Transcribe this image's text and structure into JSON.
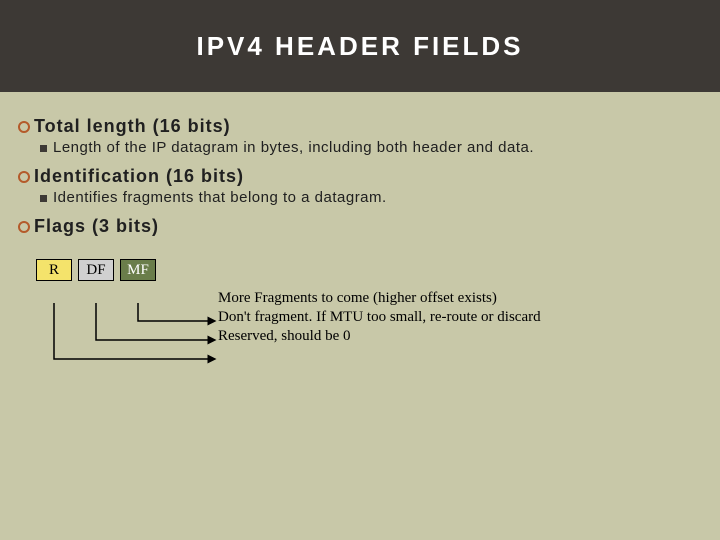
{
  "colors": {
    "header_bg": "#3d3935",
    "header_text": "#ffffff",
    "content_bg": "#c8c8a8",
    "circle_border": "#b45a2a",
    "square_fill": "#3d3935",
    "text": "#202020",
    "flag_r_bg": "#f4e36b",
    "flag_df_bg": "#d0d0d0",
    "flag_mf_bg": "#6a7d4a",
    "flag_border": "#000000",
    "arrow": "#000000"
  },
  "header": {
    "title": "IPV4 HEADER FIELDS",
    "fontsize": 26
  },
  "fields": [
    {
      "title": "Total length (16 bits)",
      "title_fontsize": 18,
      "sub": "Length of the IP datagram in bytes, including both header and data.",
      "sub_fontsize": 15
    },
    {
      "title": "Identification (16 bits)",
      "title_fontsize": 18,
      "sub": "Identifies fragments that belong to a datagram.",
      "sub_fontsize": 15
    },
    {
      "title": "Flags (3 bits)",
      "title_fontsize": 18,
      "sub": null
    }
  ],
  "flags": {
    "boxes": [
      "R",
      "DF",
      "MF"
    ],
    "box_fontsize": 15,
    "descriptions": [
      "More Fragments to come (higher offset exists)",
      "Don't fragment. If MTU too small, re-route or discard",
      "Reserved, should be 0"
    ],
    "desc_fontsize": 15
  }
}
